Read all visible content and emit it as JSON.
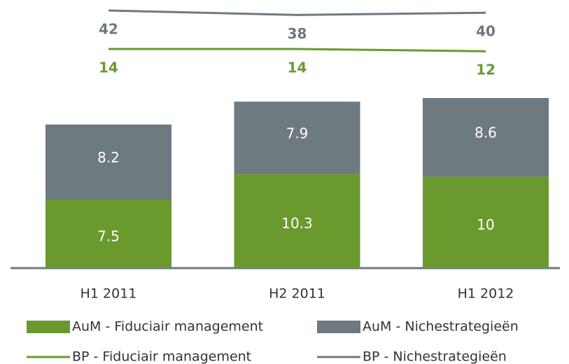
{
  "chart_data": {
    "type": "bar",
    "categories": [
      "H1 2011",
      "H2 2011",
      "H1 2012"
    ],
    "series": [
      {
        "name": "AuM - Fiduciair management",
        "type": "bar",
        "color": "#6a9a2e",
        "values": [
          7.5,
          10.3,
          10.0
        ]
      },
      {
        "name": "AuM - Nichestrategieën",
        "type": "bar",
        "color": "#6d7a80",
        "values": [
          8.2,
          7.9,
          8.6
        ]
      },
      {
        "name": "BP - Fiduciair management",
        "type": "line",
        "color": "#6a9a2e",
        "values": [
          14,
          14,
          12
        ]
      },
      {
        "name": "BP - Nichestrategieën",
        "type": "line",
        "color": "#6d7a80",
        "values": [
          42,
          38,
          40
        ]
      }
    ]
  }
}
